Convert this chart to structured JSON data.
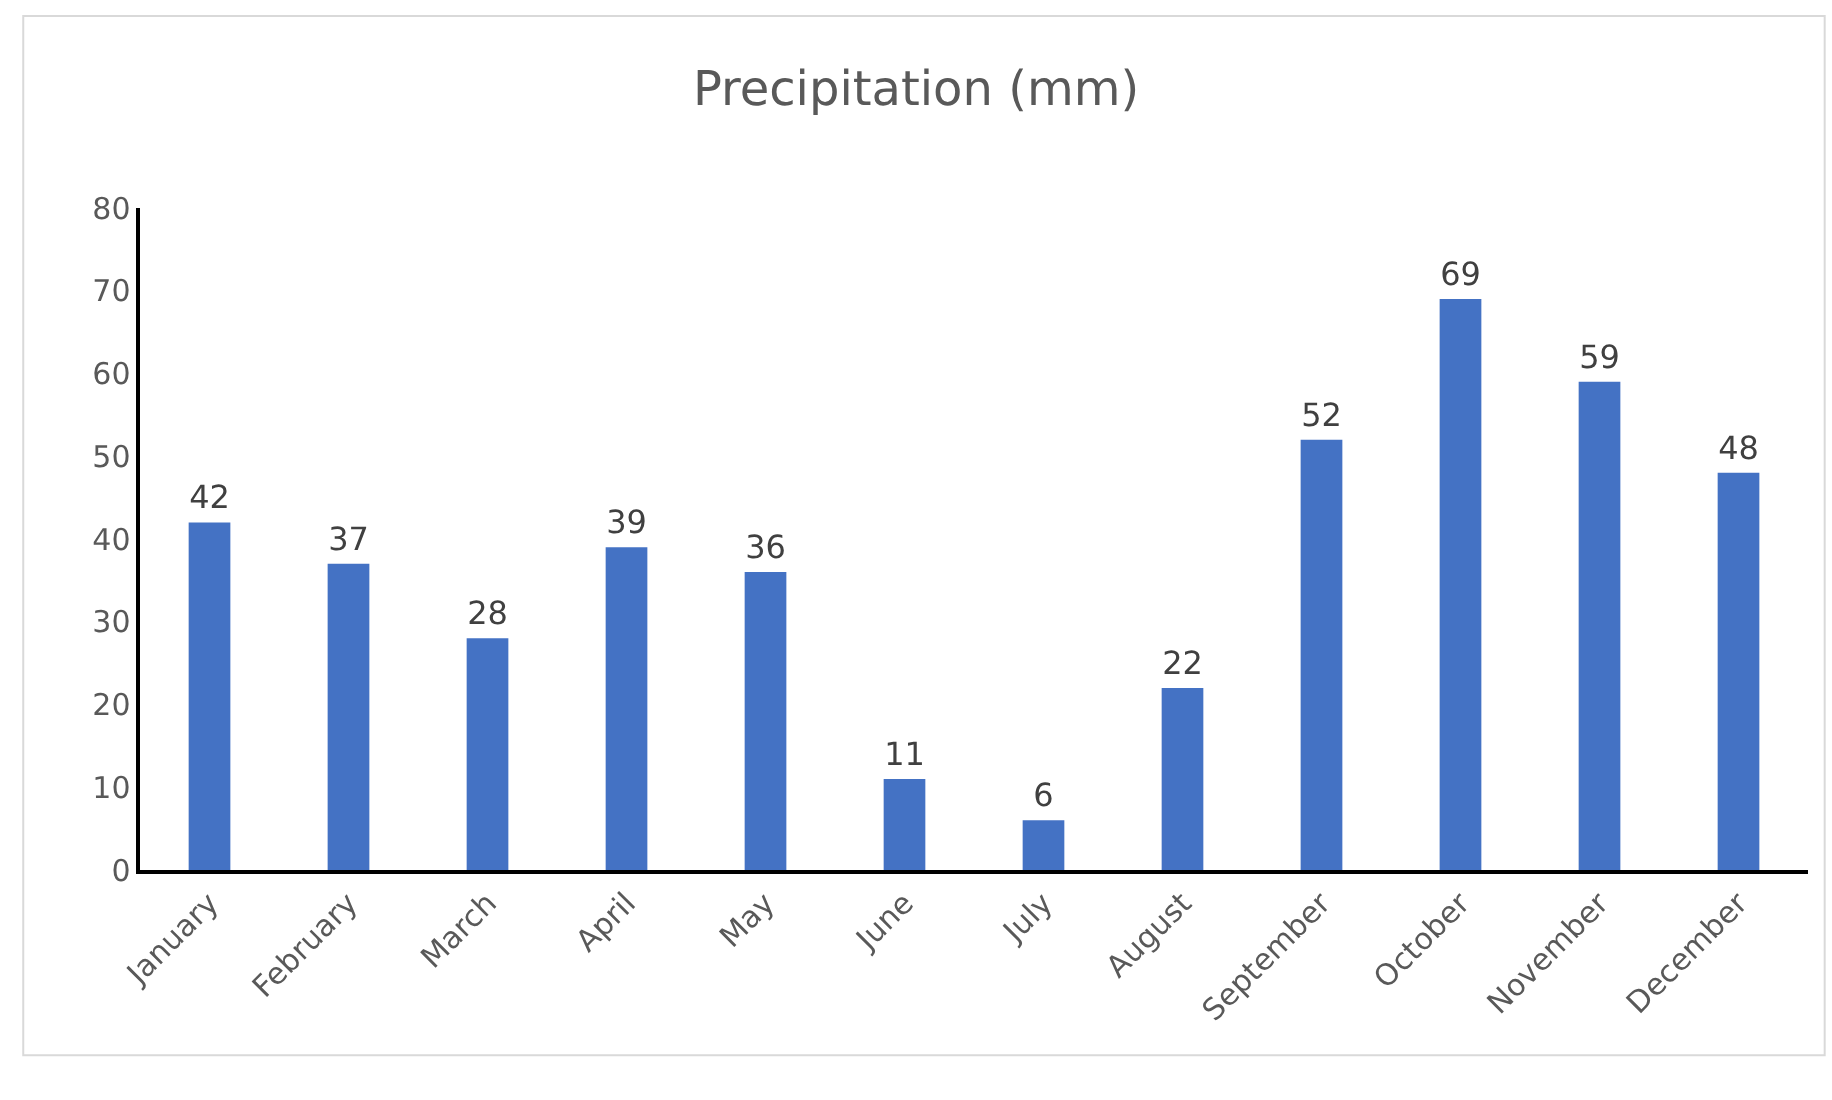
{
  "chart_data": {
    "type": "bar",
    "title": "Precipitation (mm)",
    "categories": [
      "January",
      "February",
      "March",
      "April",
      "May",
      "June",
      "July",
      "August",
      "September",
      "October",
      "November",
      "December"
    ],
    "values": [
      42,
      37,
      28,
      39,
      36,
      11,
      6,
      22,
      52,
      69,
      59,
      48
    ],
    "color": "#4472c4",
    "ylim": [
      0,
      80
    ],
    "yticks": [
      0,
      10,
      20,
      30,
      40,
      50,
      60,
      70,
      80
    ],
    "grid": false,
    "data_labels": true
  }
}
